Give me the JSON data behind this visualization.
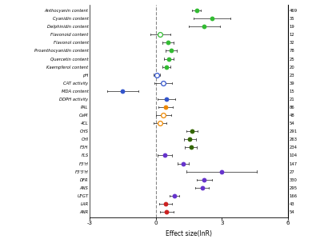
{
  "labels": [
    "Anthocyanin content",
    "Cyanidin content",
    "Delphinidin content",
    "Flavonoid content",
    "Flavonol content",
    "Proanthocyanidin content",
    "Quercetin content",
    "Kaempferol content",
    "pH",
    "CAT activity",
    "MDA content",
    "DDPH activity",
    "PAL",
    "CaM",
    "4CL",
    "CHS",
    "CHI",
    "F3H",
    "FLS",
    "F3'H",
    "F3'5'H",
    "DFR",
    "ANS",
    "UFGT",
    "LAR",
    "ANR"
  ],
  "n_values": [
    469,
    35,
    19,
    12,
    32,
    78,
    25,
    20,
    23,
    39,
    15,
    21,
    86,
    48,
    54,
    291,
    263,
    234,
    104,
    147,
    27,
    330,
    295,
    166,
    43,
    54
  ],
  "effect_sizes": [
    1.85,
    2.55,
    2.2,
    0.2,
    0.55,
    0.7,
    0.6,
    0.5,
    0.05,
    0.35,
    -1.5,
    0.5,
    0.45,
    0.35,
    0.2,
    1.65,
    1.55,
    1.6,
    0.4,
    1.25,
    3.0,
    2.2,
    2.1,
    0.85,
    0.45,
    0.5
  ],
  "ci_lower": [
    1.65,
    1.7,
    1.5,
    -0.25,
    0.3,
    0.45,
    0.38,
    0.32,
    -0.1,
    -0.05,
    -2.2,
    0.1,
    0.12,
    0.0,
    -0.1,
    1.4,
    1.28,
    1.32,
    0.07,
    1.0,
    1.4,
    1.85,
    1.8,
    0.62,
    0.15,
    0.2
  ],
  "ci_upper": [
    2.05,
    3.4,
    2.9,
    0.65,
    0.8,
    0.95,
    0.82,
    0.68,
    0.2,
    0.75,
    -0.8,
    0.9,
    0.78,
    0.7,
    0.5,
    1.9,
    1.82,
    1.88,
    0.73,
    1.5,
    4.6,
    2.55,
    2.4,
    1.08,
    0.75,
    0.8
  ],
  "colors": [
    "#33bb33",
    "#33bb33",
    "#33bb33",
    "#33bb33",
    "#33bb33",
    "#33bb33",
    "#33bb33",
    "#33bb33",
    "#3355cc",
    "#3355cc",
    "#3355cc",
    "#3355cc",
    "#ee8800",
    "#ee8800",
    "#ee8800",
    "#336600",
    "#336600",
    "#336600",
    "#6633cc",
    "#6633cc",
    "#6633cc",
    "#6633cc",
    "#6633cc",
    "#6633cc",
    "#cc2222",
    "#cc2222"
  ],
  "open_markers": [
    3,
    8,
    9,
    13,
    14
  ],
  "xlim": [
    -3,
    6
  ],
  "xticks": [
    -3,
    0,
    3,
    6
  ],
  "xlabel": "Effect size(lnR)"
}
